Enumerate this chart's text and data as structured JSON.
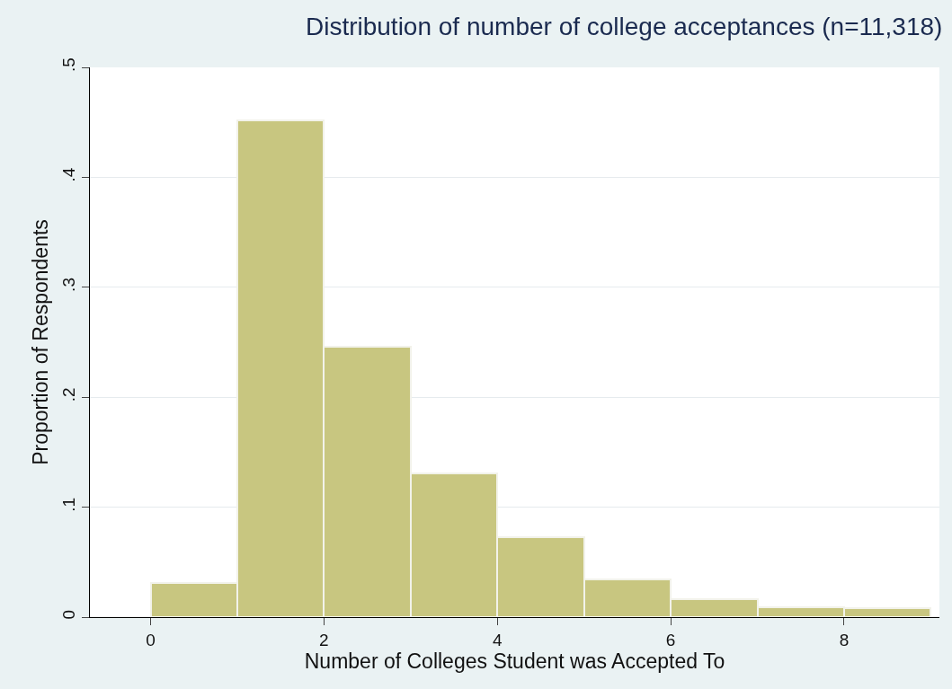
{
  "chart_data": {
    "type": "histogram",
    "title": "Distribution of number of college acceptances (n=11,318)",
    "xlabel": "Number of Colleges Student was Accepted To",
    "ylabel": "Proportion of Respondents",
    "bins": [
      0,
      1,
      2,
      3,
      4,
      5,
      6,
      7,
      8,
      9
    ],
    "values": [
      0.031,
      0.452,
      0.246,
      0.131,
      0.073,
      0.034,
      0.016,
      0.009,
      0.008
    ],
    "color": "#c8c680",
    "xlim": [
      -0.7,
      9.1
    ],
    "xticks": [
      0,
      2,
      4,
      6,
      8
    ],
    "ylim": [
      0,
      0.5
    ],
    "yticks": [
      0,
      {
        "value": 0.1,
        "label": ".1"
      },
      {
        "value": 0.2,
        "label": ".2"
      },
      {
        "value": 0.3,
        "label": ".3"
      },
      {
        "value": 0.4,
        "label": ".4"
      },
      {
        "value": 0.5,
        "label": ".5"
      }
    ],
    "grid": "y"
  }
}
